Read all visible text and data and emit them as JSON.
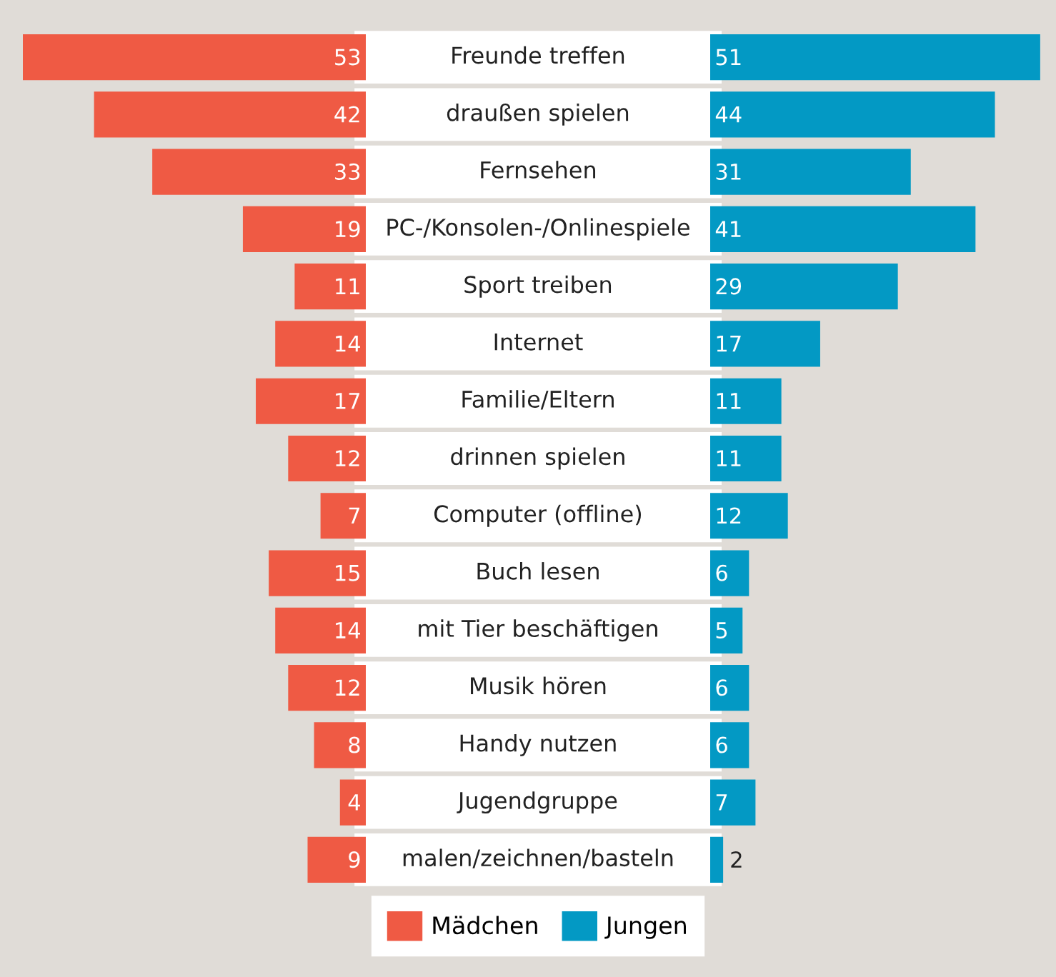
{
  "chart_data": [
    {
      "type": "bar",
      "orientation": "horizontal",
      "data_labels": true,
      "legend": "bottom",
      "categories": [
        "Freunde treffen",
        "draußen spielen",
        "Fernsehen",
        "PC-/Konsolen-/Onlinespiele",
        "Sport treiben",
        "Internet",
        "Familie/Eltern",
        "drinnen spielen",
        "Computer (offline)",
        "Buch lesen",
        "mit Tier beschäftigen",
        "Musik hören",
        "Handy nutzen",
        "Jugendgruppe",
        "malen/zeichnen/basteln"
      ],
      "series": [
        {
          "name": "Mädchen",
          "color": "#ef5a44",
          "values": [
            53,
            42,
            33,
            19,
            11,
            14,
            17,
            12,
            7,
            15,
            14,
            12,
            8,
            4,
            9
          ]
        }
      ]
    },
    {
      "type": "bar",
      "orientation": "horizontal",
      "data_labels": true,
      "legend": "bottom",
      "categories": [
        null,
        null,
        null,
        null,
        null,
        null,
        null,
        null,
        null,
        null,
        null,
        null,
        null,
        null,
        null
      ],
      "series": [
        {
          "name": "Jungen",
          "color": "#0399c4",
          "values": [
            51,
            44,
            31,
            41,
            29,
            17,
            11,
            11,
            12,
            6,
            5,
            6,
            6,
            7,
            2
          ]
        }
      ]
    }
  ]
}
